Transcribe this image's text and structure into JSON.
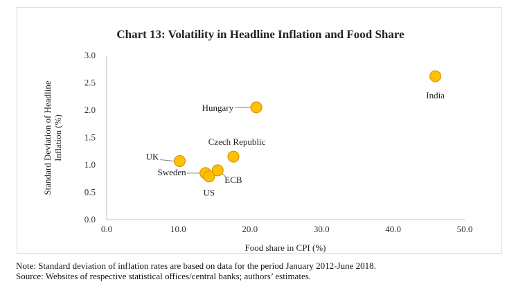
{
  "chart_data": {
    "type": "scatter",
    "title": "Chart 13: Volatility in Headline Inflation and Food Share",
    "xlabel": "Food share in CPI (%)",
    "ylabel": "Standard Deviation of Headline Inflation (%)",
    "xlim": [
      0,
      50
    ],
    "ylim": [
      0,
      3
    ],
    "xticks": [
      "0.0",
      "10.0",
      "20.0",
      "30.0",
      "40.0",
      "50.0"
    ],
    "yticks": [
      "0.0",
      "0.5",
      "1.0",
      "1.5",
      "2.0",
      "2.5",
      "3.0"
    ],
    "grid": false,
    "marker_color": "#FFC000",
    "marker_edge_color": "#D08A00",
    "points": [
      {
        "label": "UK",
        "x": 10.2,
        "y": 1.07
      },
      {
        "label": "Sweden",
        "x": 13.8,
        "y": 0.85
      },
      {
        "label": "US",
        "x": 14.3,
        "y": 0.79
      },
      {
        "label": "ECB",
        "x": 15.5,
        "y": 0.9
      },
      {
        "label": "Czech Republic",
        "x": 17.7,
        "y": 1.15
      },
      {
        "label": "Hungary",
        "x": 20.9,
        "y": 2.05
      },
      {
        "label": "India",
        "x": 45.9,
        "y": 2.62
      }
    ]
  },
  "notes": {
    "note": "Note: Standard deviation of inflation rates are based on data for the period January 2012-June 2018.",
    "source": "Source: Websites of respective statistical offices/central banks; authors’ estimates."
  }
}
